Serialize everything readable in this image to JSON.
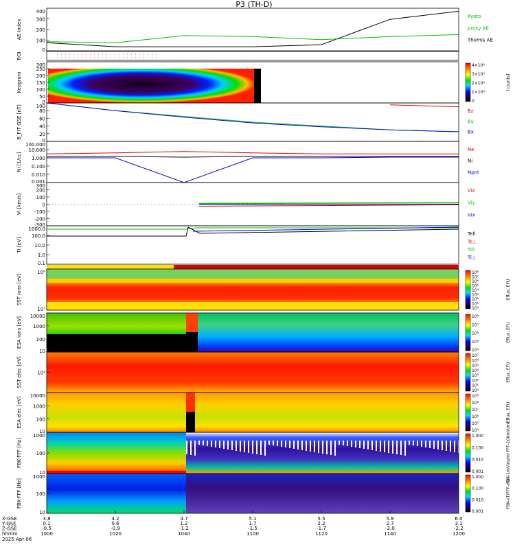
{
  "title": "P3 (TH-D)",
  "colors": {
    "red": "#e00000",
    "green": "#00c000",
    "blue": "#0000e0",
    "black": "#000000"
  },
  "x_axis": {
    "ticks": [
      {
        "time": "1000",
        "x_gse": "3.8",
        "y_gse": "0.1",
        "z_gse": "-0.5"
      },
      {
        "time": "1020",
        "x_gse": "4.2",
        "y_gse": "0.6",
        "z_gse": "-0.9"
      },
      {
        "time": "1040",
        "x_gse": "4.7",
        "y_gse": "1.2",
        "z_gse": "-1.2"
      },
      {
        "time": "1100",
        "x_gse": "5.1",
        "y_gse": "1.7",
        "z_gse": "-1.5"
      },
      {
        "time": "1120",
        "x_gse": "5.5",
        "y_gse": "2.2",
        "z_gse": "-1.7"
      },
      {
        "time": "1140",
        "x_gse": "5.8",
        "y_gse": "2.7",
        "z_gse": "-2.0"
      },
      {
        "time": "1200",
        "x_gse": "6.0",
        "y_gse": "3.1",
        "z_gse": "-2.2"
      }
    ],
    "row_labels": [
      "X-GSE",
      "Y-GSE",
      "Z-GSE",
      "hhmm"
    ],
    "date": "2025 Apr 06"
  },
  "panels": [
    {
      "ylabel": "AE Index",
      "ticks": [
        "400",
        "300",
        "200",
        "100",
        "0"
      ],
      "legend": [
        {
          "text": "Kyoto",
          "color": "#00c000"
        },
        {
          "text": "proxy AE",
          "color": "#00c000"
        },
        {
          "text": "Themis AE",
          "color": "#000000"
        }
      ]
    },
    {
      "ylabel": "ROI",
      "ticks": [],
      "legend": []
    },
    {
      "ylabel": "Keogram",
      "ticks": [
        "300",
        "250",
        "200",
        "150",
        "100",
        "50",
        "0"
      ],
      "cbar_ticks": [
        "4×10⁴",
        "3×10⁴",
        "2×10⁴",
        "1×10⁴",
        "0"
      ],
      "cbar_label": "[counts]"
    },
    {
      "ylabel": "B_FIT GSE [nT]",
      "ticks": [
        "100",
        "80",
        "60",
        "40",
        "20",
        "0"
      ],
      "legend": [
        {
          "text": "Bz",
          "color": "#e00000"
        },
        {
          "text": "By",
          "color": "#00c000"
        },
        {
          "text": "Bx",
          "color": "#0000e0"
        }
      ]
    },
    {
      "ylabel": "Ni [1/cc]",
      "ticks": [
        "100.000",
        "10.000",
        "1.000",
        "0.100",
        "0.010",
        "0.001"
      ],
      "legend": [
        {
          "text": "Ne",
          "color": "#e00000"
        },
        {
          "text": "Ni",
          "color": "#000000"
        },
        {
          "text": "Npot",
          "color": "#0000e0"
        }
      ]
    },
    {
      "ylabel": "Vi [km/s]",
      "ticks": [
        "300",
        "200",
        "100",
        "0",
        "-100",
        "-200",
        "-300"
      ],
      "legend": [
        {
          "text": "Viz",
          "color": "#e00000"
        },
        {
          "text": "Viy",
          "color": "#00c000"
        },
        {
          "text": "Vix",
          "color": "#0000e0"
        }
      ]
    },
    {
      "ylabel": "Ti [eV]",
      "ticks": [
        "1000.0",
        "100.0",
        "10.0",
        "1.0",
        "0.1"
      ],
      "legend": [
        {
          "text": "Tell",
          "color": "#000000"
        },
        {
          "text": "Te⊥",
          "color": "#e00000"
        },
        {
          "text": "Till",
          "color": "#00c000"
        },
        {
          "text": "Ti⊥",
          "color": "#0000e0"
        }
      ]
    },
    {
      "ylabel": "SST ions [eV]",
      "ticks": [
        "10⁶",
        "10⁵"
      ],
      "cbar_ticks": [
        "10⁸",
        "10⁷",
        "10⁶",
        "10⁵",
        "10⁴",
        "10³",
        "10²",
        "10¹",
        "10⁰"
      ],
      "cbar_label": "Eflux, EFU"
    },
    {
      "ylabel": "ESA ions [eV]",
      "ticks": [
        "10000",
        "1000",
        "100",
        "10"
      ],
      "cbar_ticks": [
        "10⁸",
        "10⁷",
        "10⁶",
        "10⁵",
        "10⁴"
      ],
      "cbar_label": "Eflux, EFU"
    },
    {
      "ylabel": "SST elec [eV]",
      "ticks": [
        "10⁵"
      ],
      "cbar_ticks": [
        "10⁷",
        "10⁶",
        "10⁵",
        "10⁴",
        "10³",
        "10²",
        "10¹",
        "10⁰"
      ],
      "cbar_label": "Eflux, EFU"
    },
    {
      "ylabel": "ESA elec [eV]",
      "ticks": [
        "10000",
        "1000",
        "100",
        "10"
      ],
      "cbar_ticks": [
        "10⁹",
        "10⁸",
        "10⁷",
        "10⁶",
        "10⁵",
        "10⁴"
      ],
      "cbar_label": "Eflux, EFU"
    },
    {
      "ylabel": "FBK-FFF [Hz]",
      "ticks": [
        "1000",
        "100",
        "10"
      ],
      "cbar_ticks": [
        "1.000",
        "0.100",
        "0.010",
        "0.001"
      ],
      "cbar_label": "FBK-1mV/m/ml  FFF-100mV/ml"
    },
    {
      "ylabel": "FBK-FFF [Hz]",
      "ticks": [
        "1000",
        "100",
        "10"
      ],
      "cbar_ticks": [
        "1.000",
        "0.100",
        "0.010",
        "0.001"
      ],
      "cbar_label": "FBK-nT/FFF-nT/l"
    }
  ],
  "chart_data": {
    "type": "line",
    "title": "P3 (TH-D)",
    "x": [
      "1000",
      "1020",
      "1040",
      "1100",
      "1120",
      "1140",
      "1200"
    ],
    "series": [
      {
        "name": "Themis AE",
        "values": [
          80,
          40,
          40,
          40,
          60,
          310,
          390
        ]
      },
      {
        "name": "Kyoto proxy AE",
        "values": [
          90,
          80,
          150,
          140,
          110,
          140,
          160
        ]
      },
      {
        "name": "Bz",
        "values": [
          null,
          null,
          null,
          null,
          null,
          95,
          90
        ]
      },
      {
        "name": "By",
        "values": [
          100,
          80,
          65,
          50,
          40,
          30,
          25
        ]
      },
      {
        "name": "Bx",
        "values": [
          100,
          80,
          63,
          48,
          38,
          30,
          25
        ]
      },
      {
        "name": "Ne",
        "values": [
          3,
          4,
          6,
          4,
          3,
          3,
          3
        ]
      },
      {
        "name": "Ni",
        "values": [
          1.5,
          1.5,
          1.2,
          1.5,
          1.5,
          1.5,
          1.5
        ]
      },
      {
        "name": "Npot",
        "values": [
          1,
          1,
          0.001,
          1,
          1,
          1.2,
          1.2
        ]
      }
    ],
    "grid": false
  }
}
